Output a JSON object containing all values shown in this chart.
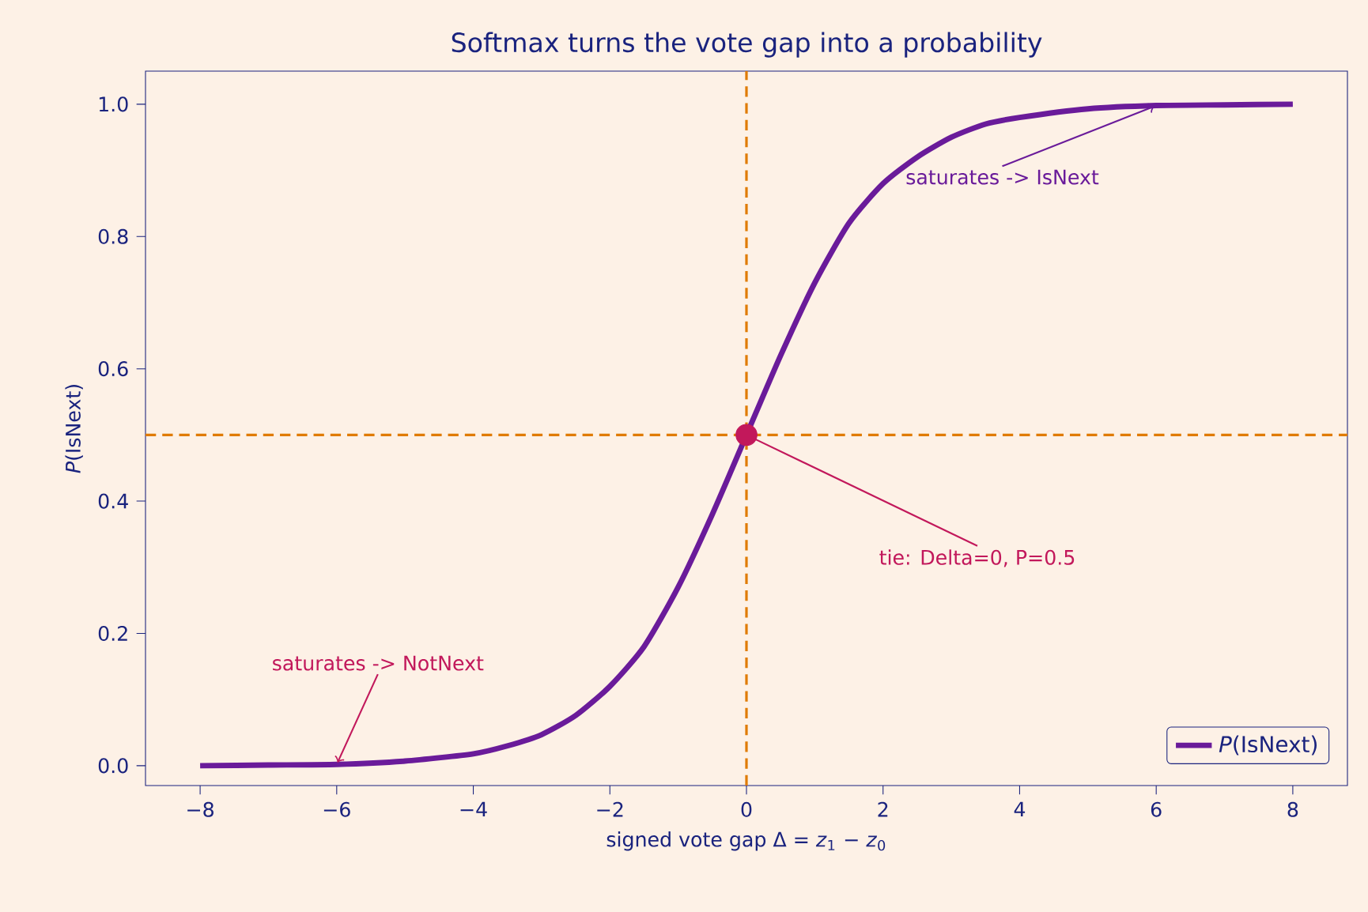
{
  "chart_data": {
    "type": "line",
    "title": "Softmax turns the vote gap into a probability",
    "xlabel": "signed vote gap  Δ = *z*$_{1}$ − *z*$_{0}$",
    "ylabel": "*P*(IsNext)",
    "series": [
      {
        "name": "*P*(IsNext)",
        "color": "#6a1b9a",
        "x": [
          -8,
          -7,
          -6,
          -5,
          -4,
          -3.5,
          -3,
          -2.5,
          -2,
          -1.5,
          -1,
          -0.5,
          0,
          0.5,
          1,
          1.5,
          2,
          2.5,
          3,
          3.5,
          4,
          5,
          6,
          7,
          8
        ],
        "values": [
          0.0,
          0.001,
          0.002,
          0.007,
          0.018,
          0.03,
          0.047,
          0.076,
          0.12,
          0.18,
          0.27,
          0.38,
          0.5,
          0.62,
          0.73,
          0.82,
          0.88,
          0.92,
          0.95,
          0.97,
          0.98,
          0.993,
          0.998,
          0.999,
          1.0
        ]
      },
      {
        "type": "scatter",
        "color": "#c2185b",
        "x": [
          0
        ],
        "values": [
          0.5
        ]
      }
    ],
    "xlim": [
      -8.8,
      8.8
    ],
    "ylim": [
      -0.03,
      1.05
    ],
    "xticks": [
      {
        "value": -8,
        "label": "−8"
      },
      {
        "value": -6,
        "label": "−6"
      },
      {
        "value": -4,
        "label": "−4"
      },
      {
        "value": -2,
        "label": "−2"
      },
      0,
      2,
      4,
      6,
      8
    ],
    "yticks": [
      {
        "value": 0,
        "label": "0.0"
      },
      {
        "value": 0.2,
        "label": "0.2"
      },
      {
        "value": 0.4,
        "label": "0.4"
      },
      {
        "value": 0.6,
        "label": "0.6"
      },
      {
        "value": 0.8,
        "label": "0.8"
      },
      {
        "value": 1,
        "label": "1.0"
      }
    ],
    "ref_lines": [
      {
        "axis": "x",
        "value": 0,
        "color": "#e07b00",
        "line_style": "dashed"
      },
      {
        "axis": "y",
        "value": 0.5,
        "color": "#e07b00",
        "line_style": "dashed"
      }
    ],
    "annotations": [
      {
        "text": "saturates -> IsNext",
        "x": 6,
        "y": 0.998
      },
      {
        "text": "saturates -> NotNext",
        "x": -6,
        "y": 0.002
      },
      {
        "text": "tie: Delta=0, P=0.5",
        "x": 0,
        "y": 0.5
      }
    ],
    "legend": "bottom right",
    "grid": false
  }
}
